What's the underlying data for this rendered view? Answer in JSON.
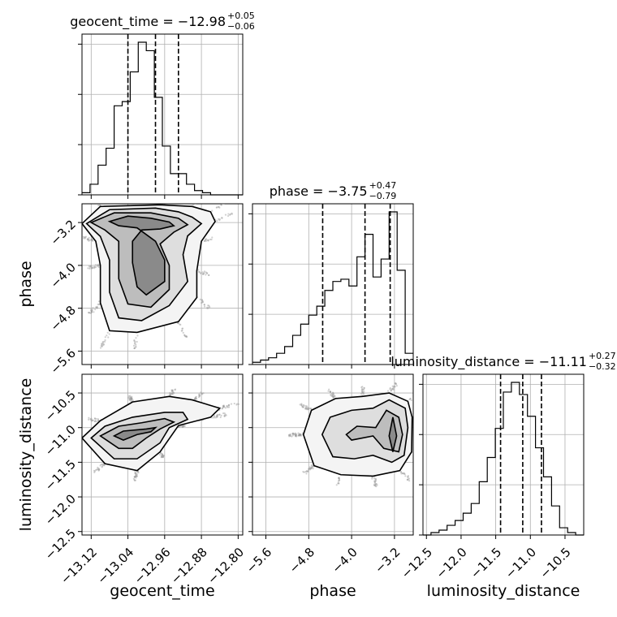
{
  "chart_data": {
    "type": "corner",
    "parameters": [
      "geocent_time",
      "phase",
      "luminosity_distance"
    ],
    "axis_labels": [
      "geocent_time",
      "phase",
      "luminosity_distance"
    ],
    "ranges": {
      "geocent_time": [
        -13.14,
        -12.79
      ],
      "phase": [
        -5.85,
        -2.85
      ],
      "luminosity_distance": [
        -12.55,
        -10.23
      ]
    },
    "ticks": {
      "geocent_time": {
        "values": [
          -13.12,
          -13.04,
          -12.96,
          -12.88,
          -12.8
        ],
        "labels": [
          "−13.12",
          "−13.04",
          "−12.96",
          "−12.88",
          "−12.80"
        ]
      },
      "phase": {
        "values": [
          -5.6,
          -4.8,
          -4.0,
          -3.2
        ],
        "labels": [
          "−5.6",
          "−4.8",
          "−4.0",
          "−3.2"
        ]
      },
      "luminosity_distance": {
        "values": [
          -12.5,
          -12.0,
          -11.5,
          -11.0,
          -10.5
        ],
        "labels": [
          "−12.5",
          "−12.0",
          "−11.5",
          "−11.0",
          "−10.5"
        ]
      }
    },
    "titles": [
      {
        "param": "geocent_time",
        "text": "geocent_time = −12.98",
        "plus": "+0.05",
        "minus": "−0.06"
      },
      {
        "param": "phase",
        "text": "phase = −3.75",
        "plus": "+0.47",
        "minus": "−0.79"
      },
      {
        "param": "luminosity_distance",
        "text": "luminosity_distance = −11.11",
        "plus": "+0.27",
        "minus": "−0.32"
      }
    ],
    "histograms": {
      "geocent_time": {
        "edges": [
          -13.14,
          -13.1225,
          -13.105,
          -13.0875,
          -13.07,
          -13.0525,
          -13.035,
          -13.0175,
          -13.0,
          -12.9825,
          -12.965,
          -12.9475,
          -12.93,
          -12.9125,
          -12.895,
          -12.8775,
          -12.86,
          -12.8425,
          -12.825,
          -12.8075,
          -12.79
        ],
        "counts": [
          1,
          5,
          14,
          22,
          42,
          44,
          58,
          72,
          68,
          46,
          23,
          10,
          10,
          5,
          2,
          1,
          0,
          0,
          0,
          0
        ],
        "quantiles": [
          -13.04,
          -12.98,
          -12.93
        ]
      },
      "phase": {
        "edges": [
          -5.85,
          -5.7,
          -5.55,
          -5.4,
          -5.25,
          -5.1,
          -4.95,
          -4.8,
          -4.65,
          -4.5,
          -4.35,
          -4.2,
          -4.05,
          -3.9,
          -3.75,
          -3.6,
          -3.45,
          -3.3,
          -3.15,
          -3.0,
          -2.85
        ],
        "counts": [
          1,
          2,
          3,
          5,
          8,
          13,
          18,
          22,
          26,
          33,
          37,
          38,
          35,
          48,
          58,
          39,
          47,
          68,
          42,
          5
        ],
        "quantiles": [
          -4.54,
          -3.75,
          -3.28
        ]
      },
      "luminosity_distance": {
        "edges": [
          -12.55,
          -12.434,
          -12.318,
          -12.202,
          -12.086,
          -11.97,
          -11.854,
          -11.738,
          -11.622,
          -11.506,
          -11.39,
          -11.274,
          -11.158,
          -11.042,
          -10.926,
          -10.81,
          -10.694,
          -10.578,
          -10.462,
          -10.346,
          -10.23
        ],
        "counts": [
          0,
          1,
          2,
          4,
          6,
          9,
          13,
          22,
          32,
          44,
          59,
          63,
          58,
          49,
          36,
          24,
          12,
          3,
          1,
          0
        ],
        "quantiles": [
          -11.43,
          -11.11,
          -10.84
        ]
      }
    },
    "scatter_2d": [
      {
        "x": "geocent_time",
        "y": "phase",
        "contours": [
          [
            [
              -13.08,
              -3.18
            ],
            [
              -13.04,
              -3.08
            ],
            [
              -12.99,
              -3.12
            ],
            [
              -12.95,
              -3.19
            ],
            [
              -12.94,
              -3.26
            ],
            [
              -12.97,
              -3.32
            ],
            [
              -13.01,
              -3.34
            ],
            [
              -13.03,
              -3.55
            ],
            [
              -13.03,
              -3.95
            ],
            [
              -13.02,
              -4.4
            ],
            [
              -13.0,
              -4.55
            ],
            [
              -12.96,
              -4.3
            ],
            [
              -12.96,
              -3.9
            ],
            [
              -12.98,
              -3.55
            ],
            [
              -13.02,
              -3.3
            ],
            [
              -13.06,
              -3.26
            ],
            [
              -13.08,
              -3.18
            ]
          ],
          [
            [
              -13.12,
              -3.2
            ],
            [
              -13.07,
              -3.02
            ],
            [
              -12.99,
              -3.02
            ],
            [
              -12.93,
              -3.12
            ],
            [
              -12.91,
              -3.24
            ],
            [
              -12.94,
              -3.38
            ],
            [
              -12.97,
              -3.6
            ],
            [
              -12.95,
              -4.0
            ],
            [
              -12.95,
              -4.45
            ],
            [
              -12.99,
              -4.78
            ],
            [
              -13.04,
              -4.72
            ],
            [
              -13.06,
              -4.25
            ],
            [
              -13.06,
              -3.55
            ],
            [
              -13.09,
              -3.34
            ],
            [
              -13.12,
              -3.2
            ]
          ],
          [
            [
              -13.13,
              -3.22
            ],
            [
              -13.08,
              -2.96
            ],
            [
              -12.98,
              -2.93
            ],
            [
              -12.93,
              -3.0
            ],
            [
              -12.9,
              -3.1
            ],
            [
              -12.88,
              -3.22
            ],
            [
              -12.91,
              -3.45
            ],
            [
              -12.92,
              -3.8
            ],
            [
              -12.91,
              -4.3
            ],
            [
              -12.95,
              -4.75
            ],
            [
              -13.01,
              -5.03
            ],
            [
              -13.06,
              -4.98
            ],
            [
              -13.08,
              -4.5
            ],
            [
              -13.08,
              -3.9
            ],
            [
              -13.1,
              -3.46
            ],
            [
              -13.13,
              -3.22
            ]
          ],
          [
            [
              -13.14,
              -3.22
            ],
            [
              -13.1,
              -2.9
            ],
            [
              -12.97,
              -2.87
            ],
            [
              -12.9,
              -2.9
            ],
            [
              -12.86,
              -3.0
            ],
            [
              -12.85,
              -3.18
            ],
            [
              -12.88,
              -3.55
            ],
            [
              -12.89,
              -4.1
            ],
            [
              -12.89,
              -4.6
            ],
            [
              -12.93,
              -5.05
            ],
            [
              -13.02,
              -5.25
            ],
            [
              -13.08,
              -5.22
            ],
            [
              -13.1,
              -4.7
            ],
            [
              -13.1,
              -4.0
            ],
            [
              -13.11,
              -3.55
            ],
            [
              -13.14,
              -3.22
            ]
          ]
        ]
      },
      {
        "x": "geocent_time",
        "y": "luminosity_distance",
        "contours": [
          [
            [
              -13.07,
              -11.12
            ],
            [
              -13.05,
              -11.05
            ],
            [
              -13.0,
              -11.02
            ],
            [
              -12.98,
              -11.0
            ],
            [
              -12.99,
              -11.06
            ],
            [
              -13.02,
              -11.1
            ],
            [
              -13.05,
              -11.18
            ],
            [
              -13.07,
              -11.12
            ]
          ],
          [
            [
              -13.1,
              -11.12
            ],
            [
              -13.06,
              -10.98
            ],
            [
              -13.01,
              -10.93
            ],
            [
              -12.96,
              -10.87
            ],
            [
              -12.94,
              -10.92
            ],
            [
              -12.97,
              -11.02
            ],
            [
              -13.0,
              -11.15
            ],
            [
              -13.03,
              -11.3
            ],
            [
              -13.06,
              -11.3
            ],
            [
              -13.1,
              -11.12
            ]
          ],
          [
            [
              -13.12,
              -11.15
            ],
            [
              -13.09,
              -10.98
            ],
            [
              -13.03,
              -10.85
            ],
            [
              -12.96,
              -10.78
            ],
            [
              -12.92,
              -10.78
            ],
            [
              -12.91,
              -10.88
            ],
            [
              -12.95,
              -11.0
            ],
            [
              -12.97,
              -11.22
            ],
            [
              -13.02,
              -11.45
            ],
            [
              -13.07,
              -11.45
            ],
            [
              -13.12,
              -11.15
            ]
          ],
          [
            [
              -13.14,
              -11.15
            ],
            [
              -13.1,
              -10.9
            ],
            [
              -13.03,
              -10.63
            ],
            [
              -12.95,
              -10.55
            ],
            [
              -12.9,
              -10.6
            ],
            [
              -12.84,
              -10.72
            ],
            [
              -12.86,
              -10.85
            ],
            [
              -12.93,
              -10.97
            ],
            [
              -12.97,
              -11.35
            ],
            [
              -13.02,
              -11.62
            ],
            [
              -13.09,
              -11.52
            ],
            [
              -13.14,
              -11.15
            ]
          ]
        ]
      },
      {
        "x": "phase",
        "y": "luminosity_distance",
        "contours": [
          [
            [
              -3.3,
              -11.12
            ],
            [
              -3.23,
              -10.85
            ],
            [
              -3.16,
              -11.12
            ],
            [
              -3.23,
              -11.35
            ],
            [
              -3.3,
              -11.12
            ]
          ],
          [
            [
              -4.1,
              -11.1
            ],
            [
              -3.9,
              -10.98
            ],
            [
              -3.55,
              -11.0
            ],
            [
              -3.35,
              -10.75
            ],
            [
              -3.12,
              -10.85
            ],
            [
              -3.05,
              -11.1
            ],
            [
              -3.12,
              -11.35
            ],
            [
              -3.4,
              -11.3
            ],
            [
              -3.6,
              -11.12
            ],
            [
              -4.0,
              -11.18
            ],
            [
              -4.1,
              -11.1
            ]
          ],
          [
            [
              -4.55,
              -11.1
            ],
            [
              -4.4,
              -10.85
            ],
            [
              -4.0,
              -10.75
            ],
            [
              -3.6,
              -10.72
            ],
            [
              -3.3,
              -10.6
            ],
            [
              -3.0,
              -10.72
            ],
            [
              -2.95,
              -11.0
            ],
            [
              -3.02,
              -11.4
            ],
            [
              -3.25,
              -11.5
            ],
            [
              -3.6,
              -11.4
            ],
            [
              -3.95,
              -11.45
            ],
            [
              -4.35,
              -11.42
            ],
            [
              -4.55,
              -11.1
            ]
          ],
          [
            [
              -4.9,
              -11.1
            ],
            [
              -4.75,
              -10.75
            ],
            [
              -4.3,
              -10.58
            ],
            [
              -3.8,
              -10.55
            ],
            [
              -3.3,
              -10.5
            ],
            [
              -2.95,
              -10.62
            ],
            [
              -2.87,
              -10.85
            ],
            [
              -2.88,
              -11.35
            ],
            [
              -3.1,
              -11.62
            ],
            [
              -3.6,
              -11.7
            ],
            [
              -4.2,
              -11.68
            ],
            [
              -4.7,
              -11.55
            ],
            [
              -4.9,
              -11.1
            ]
          ]
        ]
      }
    ]
  }
}
